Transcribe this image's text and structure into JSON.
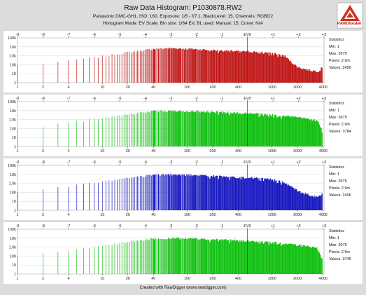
{
  "header": {
    "title": "Raw Data Histogram: P1030878.RW2",
    "camera_line": "Panasonic DMC-GH1, ISO: 160, Exposure: 1/5 - f/7.1, BlackLevel: 15, Channels: RGBG2",
    "mode_line": "Histogram Mode: EV Scale, Bin size: 1/64 EV, BL used: Manual: 15, Curve: N/A",
    "logo_text": "RAWDIGGER"
  },
  "footer": {
    "text": "Created with RawDigger (www.rawdigger.com)"
  },
  "colors": {
    "red": "#c01818",
    "green": "#10c010",
    "blue": "#1818c0",
    "green2": "#10c010",
    "ev0": "#404040",
    "grid": "#d8d8d8"
  },
  "chart_data": [
    {
      "type": "bar",
      "channel": "R",
      "x_scale": "log2",
      "y_scale": "log10",
      "xlim": [
        1,
        4096
      ],
      "ylim": [
        1,
        100000
      ],
      "x_ticks_bottom": [
        "1",
        "2",
        "4",
        "10",
        "20",
        "40",
        "100",
        "200",
        "400",
        "1000",
        "2000",
        "4000"
      ],
      "x_ticks_top": [
        "-9",
        "-8",
        "-7",
        "-6",
        "-5",
        "-4",
        "-3",
        "-2",
        "-1",
        "EV0",
        "+1",
        "+2",
        "+3"
      ],
      "y_ticks": [
        "1",
        "10",
        "100",
        "1.0k",
        "10k",
        "100k"
      ],
      "stats": {
        "heading": "Statistics",
        "min": "Min: 1",
        "max": "Max: 3975",
        "pixels": "Pixels: 2.9m",
        "values": "Values: 2499"
      },
      "envelope": [
        [
          1,
          100
        ],
        [
          2,
          150
        ],
        [
          4,
          300
        ],
        [
          10,
          900
        ],
        [
          20,
          2500
        ],
        [
          40,
          6000
        ],
        [
          60,
          7500
        ],
        [
          100,
          6500
        ],
        [
          200,
          4500
        ],
        [
          400,
          3500
        ],
        [
          700,
          2800
        ],
        [
          1000,
          2200
        ],
        [
          1400,
          1100
        ],
        [
          1700,
          200
        ],
        [
          2000,
          60
        ],
        [
          2800,
          25
        ],
        [
          3600,
          20
        ],
        [
          3900,
          60
        ],
        [
          3975,
          2
        ]
      ]
    },
    {
      "type": "bar",
      "channel": "G",
      "x_scale": "log2",
      "y_scale": "log10",
      "xlim": [
        1,
        4096
      ],
      "ylim": [
        1,
        100000
      ],
      "x_ticks_bottom": [
        "1",
        "2",
        "4",
        "10",
        "20",
        "40",
        "100",
        "200",
        "400",
        "1000",
        "2000",
        "4000"
      ],
      "x_ticks_top": [
        "-9",
        "-8",
        "-7",
        "-6",
        "-5",
        "-4",
        "-3",
        "-2",
        "-1",
        "EV0",
        "+1",
        "+2",
        "+3"
      ],
      "y_ticks": [
        "1",
        "10",
        "100",
        "1.0k",
        "10k",
        "100k"
      ],
      "stats": {
        "heading": "Statistics",
        "min": "Min: 1",
        "max": "Max: 3975",
        "pixels": "Pixels: 2.9m",
        "values": "Values: 3784"
      },
      "envelope": [
        [
          1,
          100
        ],
        [
          2,
          200
        ],
        [
          4,
          500
        ],
        [
          10,
          1500
        ],
        [
          20,
          4000
        ],
        [
          40,
          9000
        ],
        [
          60,
          10000
        ],
        [
          100,
          9500
        ],
        [
          200,
          7500
        ],
        [
          400,
          6000
        ],
        [
          700,
          4500
        ],
        [
          1000,
          3500
        ],
        [
          1500,
          2500
        ],
        [
          2000,
          1800
        ],
        [
          2800,
          1200
        ],
        [
          3400,
          800
        ],
        [
          3700,
          200
        ],
        [
          3900,
          40
        ],
        [
          3975,
          2
        ]
      ]
    },
    {
      "type": "bar",
      "channel": "B",
      "x_scale": "log2",
      "y_scale": "log10",
      "xlim": [
        1,
        4096
      ],
      "ylim": [
        1,
        100000
      ],
      "x_ticks_bottom": [
        "1",
        "2",
        "4",
        "10",
        "20",
        "40",
        "100",
        "200",
        "400",
        "1000",
        "2000",
        "4000"
      ],
      "x_ticks_top": [
        "-9",
        "-8",
        "-7",
        "-6",
        "-5",
        "-4",
        "-3",
        "-2",
        "-1",
        "EV0",
        "+1",
        "+2",
        "+3"
      ],
      "y_ticks": [
        "1",
        "10",
        "100",
        "1.0k",
        "10k",
        "100k"
      ],
      "stats": {
        "heading": "Statistics",
        "min": "Min: 1",
        "max": "Max: 3975",
        "pixels": "Pixels: 2.9m",
        "values": "Values: 2406"
      },
      "envelope": [
        [
          1,
          100
        ],
        [
          2,
          200
        ],
        [
          4,
          500
        ],
        [
          10,
          1500
        ],
        [
          20,
          4500
        ],
        [
          40,
          9000
        ],
        [
          60,
          10000
        ],
        [
          100,
          9000
        ],
        [
          200,
          7000
        ],
        [
          400,
          5000
        ],
        [
          700,
          4000
        ],
        [
          1000,
          3000
        ],
        [
          1400,
          1200
        ],
        [
          1800,
          300
        ],
        [
          2200,
          100
        ],
        [
          2800,
          50
        ],
        [
          3500,
          30
        ],
        [
          3900,
          80
        ],
        [
          3975,
          2
        ]
      ]
    },
    {
      "type": "bar",
      "channel": "G2",
      "x_scale": "log2",
      "y_scale": "log10",
      "xlim": [
        1,
        4096
      ],
      "ylim": [
        1,
        100000
      ],
      "x_ticks_bottom": [
        "1",
        "2",
        "4",
        "10",
        "20",
        "40",
        "100",
        "200",
        "400",
        "1000",
        "2000",
        "4000"
      ],
      "x_ticks_top": [
        "-9",
        "-8",
        "-7",
        "-6",
        "-5",
        "-4",
        "-3",
        "-2",
        "-1",
        "EV0",
        "+1",
        "+2",
        "+3"
      ],
      "y_ticks": [
        "1",
        "10",
        "100",
        "1.0k",
        "10k",
        "100k"
      ],
      "stats": {
        "heading": "Statistics",
        "min": "Min: 1",
        "max": "Max: 3975",
        "pixels": "Pixels: 2.9m",
        "values": "Values: 3746"
      },
      "envelope": [
        [
          1,
          100
        ],
        [
          2,
          200
        ],
        [
          4,
          500
        ],
        [
          10,
          1500
        ],
        [
          20,
          4000
        ],
        [
          40,
          9000
        ],
        [
          60,
          10000
        ],
        [
          100,
          9500
        ],
        [
          200,
          7500
        ],
        [
          400,
          6000
        ],
        [
          700,
          4500
        ],
        [
          1000,
          3500
        ],
        [
          1500,
          2500
        ],
        [
          2000,
          1800
        ],
        [
          2800,
          1200
        ],
        [
          3400,
          800
        ],
        [
          3700,
          200
        ],
        [
          3900,
          40
        ],
        [
          3975,
          2
        ]
      ]
    }
  ]
}
